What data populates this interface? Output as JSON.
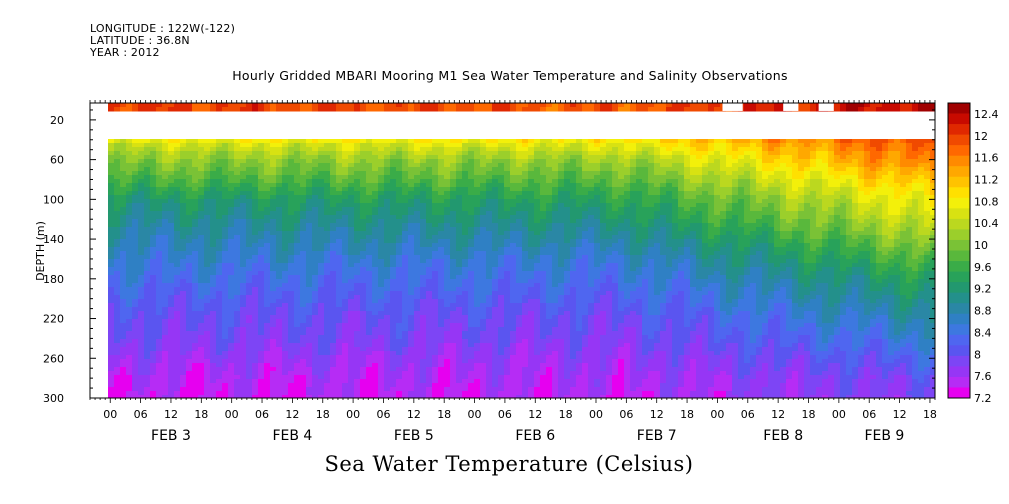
{
  "header": {
    "longitude": "LONGITUDE : 122W(-122)",
    "latitude": "LATITUDE : 36.8N",
    "year": "YEAR : 2012"
  },
  "title": "Hourly Gridded MBARI Mooring M1 Sea Water Temperature and Salinity Observations",
  "bottom_title": "Sea Water Temperature (Celsius)",
  "chart_data": {
    "type": "heatmap",
    "title": "Hourly Gridded MBARI Mooring M1 Sea Water Temperature and Salinity Observations",
    "xlabel": "",
    "ylabel": "DEPTH (m)",
    "colorbar_label": "Sea Water Temperature (Celsius)",
    "y_ticks": [
      20,
      60,
      100,
      140,
      180,
      220,
      260,
      300
    ],
    "y_range": [
      3,
      300
    ],
    "y_inverted": true,
    "x_range_hours": [
      -10,
      157
    ],
    "x_hour_labels": [
      "00",
      "06",
      "12",
      "18",
      "00",
      "06",
      "12",
      "18",
      "00",
      "06",
      "12",
      "18",
      "00",
      "06",
      "12",
      "18",
      "00",
      "06",
      "12",
      "18",
      "00",
      "06",
      "12",
      "18",
      "00",
      "06",
      "12",
      "18",
      "00",
      "06",
      "12",
      "18"
    ],
    "x_hour_values": [
      -6,
      0,
      6,
      12,
      18,
      24,
      30,
      36,
      42,
      48,
      54,
      60,
      66,
      72,
      78,
      84,
      90,
      96,
      102,
      108,
      114,
      120,
      126,
      132,
      138,
      144,
      150,
      156,
      162,
      168,
      174,
      180
    ],
    "x_date_labels": [
      "FEB 3",
      "FEB 4",
      "FEB 5",
      "FEB 6",
      "FEB 7",
      "FEB 8",
      "FEB 9"
    ],
    "x_date_hours": [
      6,
      30,
      54,
      78,
      102,
      127,
      147
    ],
    "colorbar": {
      "labels": [
        "12.4",
        "12",
        "11.6",
        "11.2",
        "10.8",
        "10.4",
        "10",
        "9.6",
        "9.2",
        "8.8",
        "8.4",
        "8",
        "7.6",
        "7.2"
      ],
      "levels": [
        7.2,
        7.4,
        7.6,
        7.8,
        8.0,
        8.2,
        8.4,
        8.6,
        8.8,
        9.0,
        9.2,
        9.4,
        9.6,
        9.8,
        10.0,
        10.2,
        10.4,
        10.6,
        10.8,
        11.0,
        11.2,
        11.4,
        11.6,
        11.8,
        12.0,
        12.2,
        12.4,
        12.6
      ],
      "colors": [
        "#e600f0",
        "#b62cf5",
        "#9636f5",
        "#7d45f5",
        "#5a55f0",
        "#4f66f0",
        "#3d78e0",
        "#2f80c4",
        "#2a87a5",
        "#23908b",
        "#22986f",
        "#28a25a",
        "#3aac48",
        "#59b83c",
        "#7ac236",
        "#9bcf2b",
        "#bbd81f",
        "#d8e212",
        "#f3f00a",
        "#ffe000",
        "#ffc300",
        "#ffa800",
        "#ff8a00",
        "#ff6800",
        "#f04a00",
        "#e02800",
        "#c80a00",
        "#a00000"
      ]
    },
    "depth_samples": [
      3,
      20,
      45,
      60,
      80,
      100,
      120,
      140,
      160,
      180,
      200,
      220,
      240,
      260,
      280,
      300
    ],
    "data_gaps": [
      "depth ~10-40 m between surface and subsurface sensors",
      "near-surface sensor gaps on Feb 8"
    ],
    "regimes": [
      {
        "hour": -10,
        "temps": [
          12.2,
          12.2,
          10.6,
          10.2,
          9.8,
          9.3,
          9.0,
          8.8,
          8.6,
          8.4,
          8.2,
          8.0,
          7.9,
          7.7,
          7.5,
          7.4
        ]
      },
      {
        "hour": 95,
        "temps": [
          12.0,
          12.0,
          10.8,
          10.3,
          9.9,
          9.5,
          9.2,
          8.9,
          8.6,
          8.4,
          8.2,
          8.0,
          7.9,
          7.7,
          7.6,
          7.5
        ]
      },
      {
        "hour": 157,
        "temps": [
          12.6,
          12.6,
          12.1,
          11.9,
          11.4,
          11.0,
          10.7,
          10.3,
          9.9,
          9.5,
          9.2,
          8.9,
          8.6,
          8.3,
          8.0,
          7.9
        ]
      }
    ]
  }
}
